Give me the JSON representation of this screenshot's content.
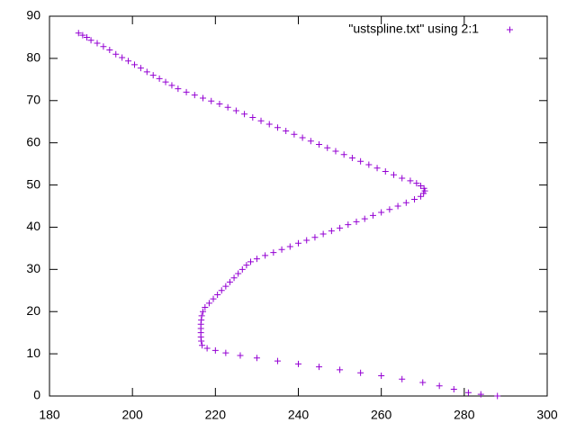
{
  "chart_data": {
    "type": "scatter",
    "xlim": [
      180,
      300
    ],
    "xticks": [
      180,
      200,
      220,
      240,
      260,
      280,
      300
    ],
    "ylim": [
      0,
      90
    ],
    "yticks": [
      0,
      10,
      20,
      30,
      40,
      50,
      60,
      70,
      80,
      90
    ],
    "legend": "top-right",
    "series": [
      {
        "name": "\"ustspline.txt\" using 2:1",
        "color": "#9400d3",
        "x": [
          187,
          188,
          189,
          190,
          191.5,
          193,
          194.5,
          196,
          197.5,
          199,
          200.5,
          202,
          203.5,
          205,
          206.5,
          208,
          209.5,
          211,
          213,
          215,
          217,
          219,
          221,
          223,
          225,
          227,
          229,
          231,
          233,
          235,
          237,
          239,
          241,
          243,
          245,
          247,
          249,
          251,
          253,
          255,
          257,
          259,
          261,
          263,
          265,
          267,
          268.5,
          269.5,
          270.3,
          270.5,
          270.2,
          269.5,
          268,
          266,
          264,
          262,
          260,
          258,
          256,
          254,
          252,
          250,
          248,
          246,
          244,
          242,
          240,
          238,
          236,
          234,
          232,
          230,
          228.5,
          227.5,
          226.5,
          225.5,
          224.5,
          223.5,
          222.5,
          221.5,
          220.5,
          219.5,
          218.5,
          217.5,
          217,
          216.7,
          216.6,
          216.5,
          216.5,
          216.5,
          216.5,
          216.6,
          216.8,
          218,
          220,
          222.5,
          226,
          230,
          235,
          240,
          245,
          250,
          255,
          260,
          265,
          270,
          274,
          277.5,
          281,
          284,
          288
        ],
        "values": [
          86,
          85.5,
          85,
          84.3,
          83.6,
          82.8,
          82,
          81,
          80.2,
          79.4,
          78.5,
          77.7,
          76.8,
          76,
          75.2,
          74.4,
          73.6,
          72.8,
          72,
          71.3,
          70.6,
          69.9,
          69.2,
          68.4,
          67.6,
          66.8,
          66,
          65.2,
          64.4,
          63.6,
          62.8,
          62,
          61.2,
          60.4,
          59.6,
          58.8,
          58,
          57.2,
          56.4,
          55.6,
          54.8,
          54,
          53.2,
          52.4,
          51.6,
          51,
          50.4,
          49.8,
          49.2,
          48.6,
          48,
          47.3,
          46.6,
          45.8,
          45,
          44.2,
          43.5,
          42.8,
          42,
          41.3,
          40.6,
          39.8,
          39.1,
          38.4,
          37.6,
          36.9,
          36.2,
          35.4,
          34.7,
          34,
          33.3,
          32.5,
          31.8,
          31,
          30,
          29,
          28,
          27,
          26,
          25,
          24,
          23,
          22,
          21,
          20,
          19,
          18,
          17,
          16,
          15,
          14,
          13,
          12,
          11.3,
          10.8,
          10.2,
          9.6,
          9,
          8.3,
          7.6,
          6.9,
          6.2,
          5.5,
          4.8,
          4,
          3.2,
          2.4,
          1.6,
          0.8,
          0.4,
          0
        ]
      }
    ]
  }
}
